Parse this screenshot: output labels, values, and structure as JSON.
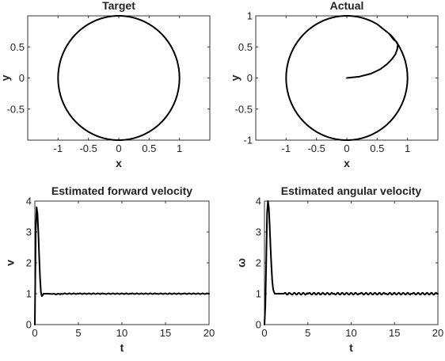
{
  "chart_data": [
    {
      "id": "target",
      "type": "line",
      "title": "Target",
      "xlabel": "x",
      "ylabel": "y",
      "xlim": [
        -1.5,
        1.5
      ],
      "ylim": [
        -1.0,
        1.0
      ],
      "xticks": [
        -1,
        -0.5,
        0,
        0.5,
        1
      ],
      "xtick_labels": [
        "-1",
        "-0.5",
        "0",
        "0.5",
        "1"
      ],
      "yticks": [
        -0.5,
        0,
        0.5
      ],
      "ytick_labels": [
        "-0.5",
        "0",
        "0.5"
      ],
      "series": [
        {
          "x": [
            1.0,
            0.866,
            0.5,
            0.0,
            -0.5,
            -0.866,
            -1.0,
            -0.866,
            -0.5,
            0.0,
            0.5,
            0.866,
            1.0
          ],
          "y": [
            0.0,
            0.5,
            0.866,
            1.0,
            0.866,
            0.5,
            0.0,
            -0.5,
            -0.866,
            -1.0,
            -0.866,
            -0.5,
            0.0
          ]
        }
      ]
    },
    {
      "id": "actual",
      "type": "line",
      "title": "Actual",
      "xlabel": "x",
      "ylabel": "y",
      "xlim": [
        -1.5,
        1.5
      ],
      "ylim": [
        -1.0,
        1.0
      ],
      "xticks": [
        -1,
        -0.5,
        0,
        0.5,
        1
      ],
      "xtick_labels": [
        "-1",
        "-0.5",
        "0",
        "0.5",
        "1"
      ],
      "yticks": [
        -1,
        -0.5,
        0,
        0.5,
        1
      ],
      "ytick_labels": [
        "-1",
        "-0.5",
        "0",
        "0.5",
        "1"
      ],
      "series": [
        {
          "x": [
            0.0,
            0.2,
            0.4,
            0.55,
            0.66,
            0.74,
            0.8,
            0.83,
            0.84,
            0.82,
            0.77,
            0.7,
            0.5,
            0.0,
            -0.5,
            -0.866,
            -1.0,
            -0.866,
            -0.5,
            0.0,
            0.5,
            0.866,
            1.0,
            0.97,
            0.866,
            0.78
          ],
          "y": [
            0.0,
            0.02,
            0.07,
            0.14,
            0.22,
            0.3,
            0.38,
            0.46,
            0.54,
            0.58,
            0.62,
            0.71,
            0.866,
            1.0,
            0.866,
            0.5,
            0.0,
            -0.5,
            -0.866,
            -1.0,
            -0.866,
            -0.5,
            0.0,
            0.25,
            0.5,
            0.63
          ]
        }
      ]
    },
    {
      "id": "forward-velocity",
      "type": "line",
      "title": "Estimated forward velocity",
      "xlabel": "t",
      "ylabel": "v",
      "xlim": [
        0,
        20
      ],
      "ylim": [
        0,
        4
      ],
      "xticks": [
        0,
        5,
        10,
        15,
        20
      ],
      "xtick_labels": [
        "0",
        "5",
        "10",
        "15",
        "20"
      ],
      "yticks": [
        0,
        1,
        2,
        3,
        4
      ],
      "ytick_labels": [
        "0",
        "1",
        "2",
        "3",
        "4"
      ],
      "series": [
        {
          "x": [
            0.0,
            0.05,
            0.1,
            0.2,
            0.3,
            0.4,
            0.5,
            0.6,
            0.7,
            0.8,
            0.9,
            1.0,
            1.2,
            1.5,
            2.0,
            3.0,
            5.0,
            8.0,
            11.0,
            14.0,
            17.0,
            20.0
          ],
          "y": [
            0.0,
            1.5,
            3.0,
            3.8,
            3.6,
            3.0,
            2.2,
            1.5,
            1.05,
            0.92,
            0.95,
            1.0,
            1.0,
            1.0,
            0.99,
            1.0,
            1.0,
            1.0,
            1.0,
            1.0,
            1.0,
            1.0
          ]
        }
      ]
    },
    {
      "id": "angular-velocity",
      "type": "line",
      "title": "Estimated angular velocity",
      "xlabel": "t",
      "ylabel": "ω",
      "xlim": [
        0,
        20
      ],
      "ylim": [
        0,
        4
      ],
      "xticks": [
        0,
        5,
        10,
        15,
        20
      ],
      "xtick_labels": [
        "0",
        "5",
        "10",
        "15",
        "20"
      ],
      "yticks": [
        0,
        1,
        2,
        3,
        4
      ],
      "ytick_labels": [
        "0",
        "1",
        "2",
        "3",
        "4"
      ],
      "series": [
        {
          "x": [
            0.0,
            0.1,
            0.2,
            0.3,
            0.4,
            0.5,
            0.6,
            0.7,
            0.8,
            0.9,
            1.0,
            1.1,
            1.2,
            1.3,
            1.5,
            1.8,
            2.2,
            3.0,
            5.0,
            8.0,
            11.0,
            14.0,
            17.0,
            20.0
          ],
          "y": [
            0.0,
            0.6,
            2.0,
            3.6,
            4.0,
            3.8,
            3.2,
            2.5,
            1.9,
            1.4,
            1.15,
            1.05,
            1.0,
            1.0,
            1.0,
            1.0,
            1.0,
            1.0,
            1.0,
            1.0,
            1.0,
            1.0,
            1.0,
            1.0
          ]
        }
      ]
    }
  ]
}
